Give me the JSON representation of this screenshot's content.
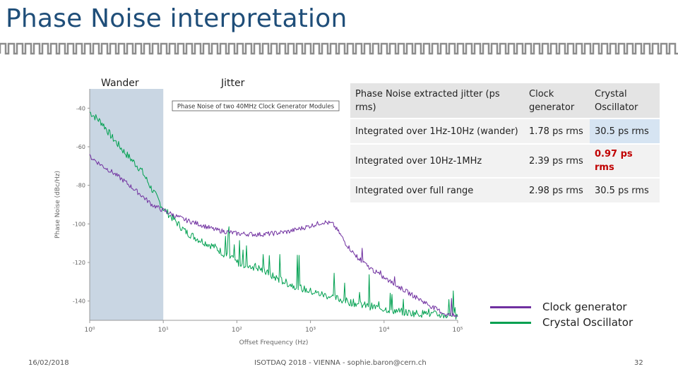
{
  "slide": {
    "title": "Phase Noise interpretation",
    "date": "16/02/2018",
    "footer": "ISOTDAQ 2018 - VIENNA - sophie.baron@cern.ch",
    "page": "32"
  },
  "regions": {
    "wander": "Wander",
    "jitter": "Jitter"
  },
  "chart_data": {
    "type": "line",
    "title": "Phase Noise of two 40MHz Clock Generator Modules",
    "xlabel": "Offset Frequency (Hz)",
    "ylabel": "Phase Noise (dBc/Hz)",
    "xscale": "log",
    "xlim": [
      1,
      100000
    ],
    "ylim": [
      -150,
      -30
    ],
    "xticks": [
      1,
      10,
      100,
      1000,
      10000,
      100000
    ],
    "xtick_labels": [
      "10⁰",
      "10¹",
      "10²",
      "10³",
      "10⁴",
      "10⁵"
    ],
    "yticks": [
      -40,
      -60,
      -80,
      -100,
      -120,
      -140
    ],
    "ytick_labels": [
      "-40",
      "-60",
      "-80",
      "-100",
      "-120",
      "-140"
    ],
    "shaded_x_range": [
      1,
      10
    ],
    "legend_position": "bottom-right",
    "grid": false,
    "series": [
      {
        "name": "Clock generator",
        "color": "#7030a0",
        "x": [
          1,
          1.5,
          2,
          3,
          5,
          7,
          10,
          15,
          20,
          30,
          50,
          70,
          100,
          200,
          300,
          500,
          800,
          1000,
          1500,
          2000,
          2500,
          3000,
          4000,
          6000,
          10000,
          20000,
          50000,
          70000,
          100000
        ],
        "y": [
          -65,
          -70,
          -73,
          -78,
          -85,
          -90,
          -93,
          -96,
          -98,
          -100,
          -103,
          -104,
          -105,
          -105.5,
          -105,
          -104,
          -102,
          -101,
          -99,
          -100,
          -105,
          -110,
          -116,
          -122,
          -128,
          -135,
          -144,
          -147,
          -148
        ]
      },
      {
        "name": "Crystal Oscillator",
        "color": "#00a050",
        "x": [
          1,
          1.5,
          2,
          3,
          5,
          7,
          10,
          15,
          20,
          30,
          50,
          70,
          100,
          200,
          300,
          500,
          1000,
          2000,
          3000,
          5000,
          10000,
          20000,
          50000,
          100000
        ],
        "y": [
          -42,
          -48,
          -55,
          -63,
          -72,
          -82,
          -92,
          -99,
          -104,
          -108,
          -112,
          -116,
          -120,
          -123,
          -127,
          -131,
          -135,
          -138,
          -140,
          -142,
          -144,
          -146,
          -147,
          -148
        ]
      }
    ]
  },
  "table": {
    "header": [
      "Phase Noise extracted jitter (ps rms)",
      "Clock generator",
      "Crystal Oscillator"
    ],
    "rows": [
      [
        "Integrated over 1Hz-10Hz (wander)",
        "1.78 ps rms",
        "30.5 ps rms"
      ],
      [
        "Integrated over 10Hz-1MHz",
        "2.39 ps rms",
        "0.97 ps rms"
      ],
      [
        "Integrated over full range",
        "2.98 ps rms",
        "30.5 ps rms"
      ]
    ]
  },
  "colors": {
    "title": "#1f4e79",
    "highlight": "#c00000",
    "wander_band": "#c9d6e3",
    "cell_blue": "#d6e4f2"
  }
}
